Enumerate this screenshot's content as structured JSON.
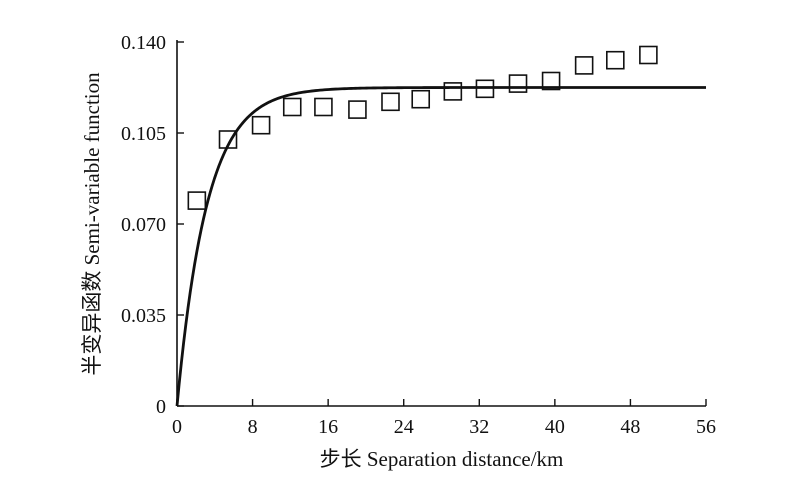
{
  "chart_data": {
    "type": "scatter",
    "xlabel": "步长 Separation distance/km",
    "ylabel": "半变异函数 Semi-variable function",
    "xlim": [
      0,
      56
    ],
    "ylim": [
      0,
      0.14
    ],
    "x_ticks": [
      "0",
      "8",
      "16",
      "24",
      "32",
      "40",
      "48",
      "56"
    ],
    "y_ticks": [
      "0",
      "0.035",
      "0.070",
      "0.105",
      "0.140"
    ],
    "grid": false,
    "legend": "none",
    "series": [
      {
        "type": "scatter",
        "marker": "square-open",
        "x": [
          2.1,
          5.4,
          8.9,
          12.2,
          15.5,
          19.1,
          22.6,
          25.8,
          29.2,
          32.6,
          36.1,
          39.6,
          43.1,
          46.4,
          49.9
        ],
        "y": [
          0.079,
          0.1025,
          0.108,
          0.115,
          0.115,
          0.114,
          0.117,
          0.118,
          0.121,
          0.122,
          0.124,
          0.125,
          0.131,
          0.133,
          0.135
        ]
      },
      {
        "type": "line",
        "model": "exponential",
        "nugget": 0,
        "sill": 0.1225,
        "range": 9.5,
        "x_start": 0,
        "x_end": 56
      }
    ]
  },
  "colors": {
    "ink": "#111111",
    "background": "#ffffff"
  }
}
